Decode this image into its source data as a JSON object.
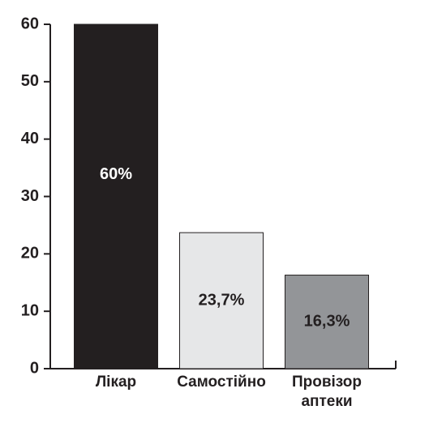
{
  "chart_data": {
    "type": "bar",
    "categories": [
      "Лікар",
      "Самостійно",
      "Провізор аптеки"
    ],
    "values": [
      60,
      23.7,
      16.3
    ],
    "value_labels": [
      "60%",
      "23,7%",
      "16,3%"
    ],
    "colors": [
      "#231f20",
      "#e6e7e8",
      "#939598"
    ],
    "ylim": [
      0,
      60
    ],
    "yticks": [
      0,
      10,
      20,
      30,
      40,
      50,
      60
    ],
    "grid": false
  }
}
